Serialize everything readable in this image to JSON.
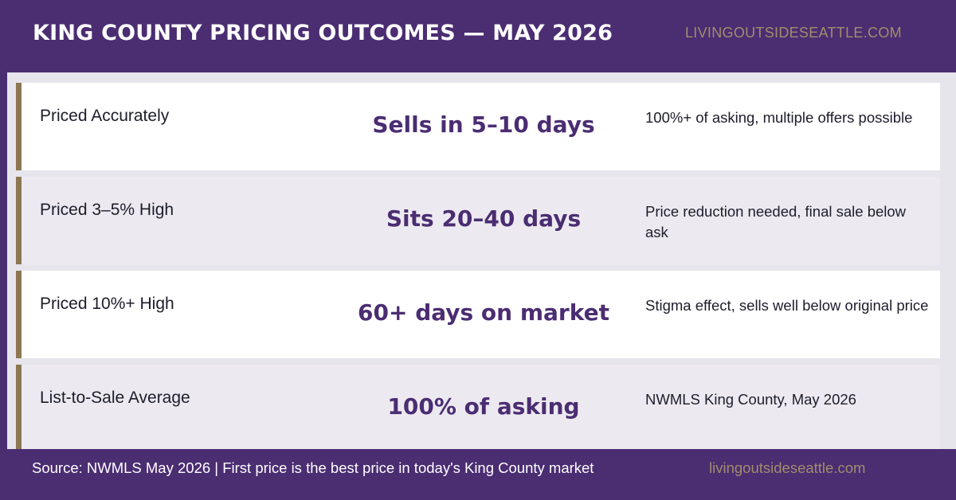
{
  "header": {
    "title": "KING COUNTY PRICING OUTCOMES — MAY 2026",
    "brand": "LIVINGOUTSIDESEATTLE.COM"
  },
  "rows": [
    {
      "label": "Priced Accurately",
      "metric": "Sells in 5–10 days",
      "note": "100%+ of asking, multiple offers possible"
    },
    {
      "label": "Priced 3–5% High",
      "metric": "Sits 20–40 days",
      "note": "Price reduction needed, final sale below ask"
    },
    {
      "label": "Priced 10%+ High",
      "metric": "60+ days on market",
      "note": "Stigma effect, sells well below original price"
    },
    {
      "label": "List-to-Sale Average",
      "metric": "100% of asking",
      "note": "NWMLS King County, May 2026"
    }
  ],
  "footer": {
    "source": "Source: NWMLS May 2026 | First price is the best price in today's King County market",
    "brand": "livingoutsideseattle.com"
  },
  "colors": {
    "primary_purple": "#4b2d72",
    "accent_gold": "#8c7752",
    "brand_gold": "#a08d6c"
  }
}
